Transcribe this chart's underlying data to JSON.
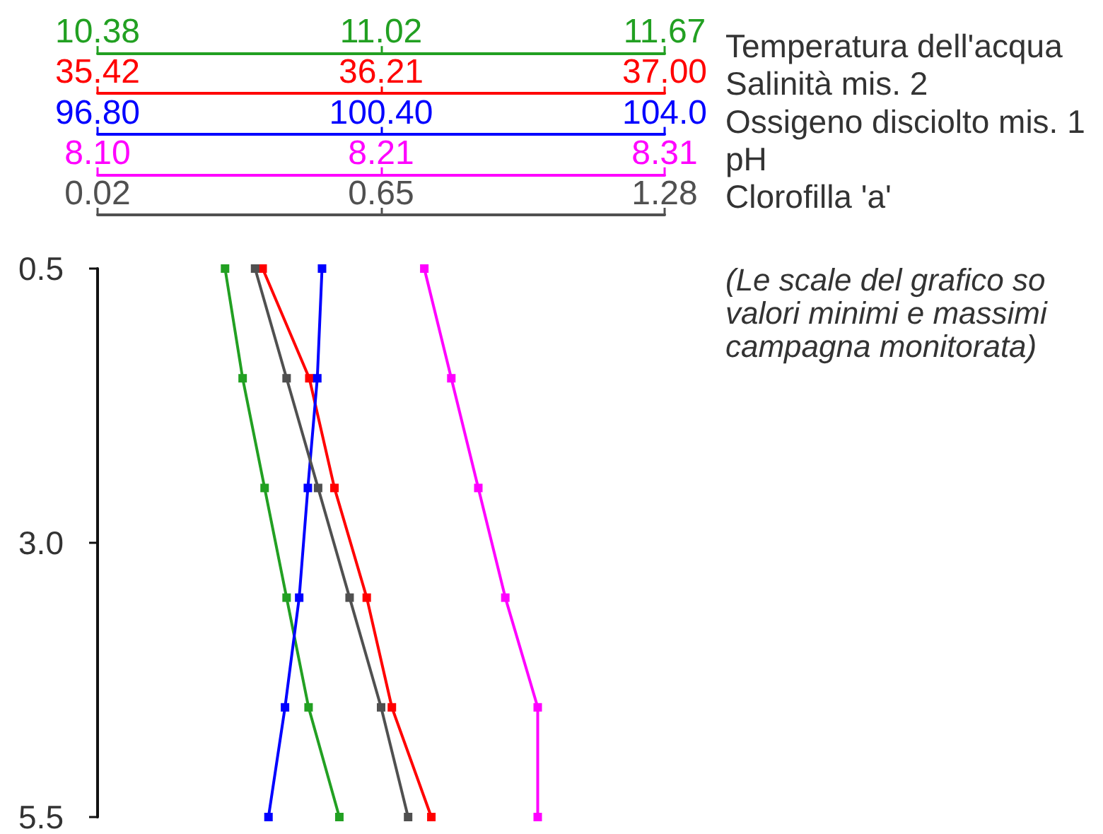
{
  "chart_data": [
    {
      "type": "line",
      "xlim": [
        10.38,
        11.67
      ],
      "xticks": [
        10.38,
        {
          "value": 11.025,
          "label": "11.02"
        },
        11.67
      ],
      "ylim": [
        5.5,
        0.5
      ],
      "tick_labels": "x",
      "series": [
        {
          "name": "Temperatura dell'acqua",
          "color": "#22a022",
          "x": [
            10.67,
            10.71,
            10.76,
            10.81,
            10.86,
            10.93
          ],
          "values": [
            0.5,
            1.5,
            2.5,
            3.5,
            4.5,
            5.5
          ]
        }
      ],
      "annotations": [
        "(Le scale del grafico so\nvalori minimi e massimi\ncampagna monitorata)"
      ],
      "legend": "top right",
      "marker": "square",
      "line_style": "solid"
    },
    {
      "type": "line",
      "xlim": [
        35.42,
        37
      ],
      "xticks": [
        35.42,
        36.21,
        {
          "value": 37,
          "label": "37.00"
        }
      ],
      "ylim": [
        5.5,
        0.5
      ],
      "tick_labels": "x",
      "series": [
        {
          "name": "Salinità mis. 2",
          "color": "#ff0000",
          "x": [
            35.88,
            36.01,
            36.08,
            36.17,
            36.24,
            36.35
          ],
          "values": [
            0.5,
            1.5,
            2.5,
            3.5,
            4.5,
            5.5
          ]
        }
      ],
      "legend": "top right",
      "marker": "square",
      "line_style": "solid"
    },
    {
      "type": "line",
      "xlim": [
        96.8,
        104
      ],
      "xticks": [
        {
          "value": 96.8,
          "label": "96.80"
        },
        {
          "value": 100.4,
          "label": "100.40"
        },
        {
          "value": 104,
          "label": "104.0"
        }
      ],
      "ylim": [
        5.5,
        0.5
      ],
      "tick_labels": "x",
      "series": [
        {
          "name": "Ossigeno disciolto mis. 1",
          "color": "#0000ff",
          "x": [
            99.65,
            99.59,
            99.47,
            99.36,
            99.18,
            98.97
          ],
          "values": [
            0.5,
            1.5,
            2.5,
            3.5,
            4.5,
            5.5
          ]
        }
      ],
      "legend": "top right",
      "marker": "square",
      "line_style": "solid"
    },
    {
      "type": "line",
      "xlim": [
        8.1,
        8.31
      ],
      "xticks": [
        {
          "value": 8.1,
          "label": "8.10"
        },
        {
          "value": 8.205,
          "label": "8.21"
        },
        8.31
      ],
      "ylim": [
        5.5,
        0.5
      ],
      "tick_labels": "x",
      "series": [
        {
          "name": "pH",
          "color": "#ff00ff",
          "x": [
            8.221,
            8.231,
            8.241,
            8.251,
            8.263,
            8.263
          ],
          "values": [
            0.5,
            1.5,
            2.5,
            3.5,
            4.5,
            5.5
          ]
        }
      ],
      "legend": "top right",
      "marker": "square",
      "line_style": "solid"
    },
    {
      "type": "line",
      "xlim": [
        0.02,
        1.28
      ],
      "xticks": [
        0.02,
        0.65,
        1.28
      ],
      "ylim": [
        5.5,
        0.5
      ],
      "yticks": [
        0.5,
        {
          "value": 3,
          "label": "3.0"
        },
        5.5
      ],
      "series": [
        {
          "name": "Clorofilla 'a'",
          "color": "#505050",
          "x": [
            0.37,
            0.44,
            0.51,
            0.58,
            0.65,
            0.71
          ],
          "values": [
            0.5,
            1.5,
            2.5,
            3.5,
            4.5,
            5.5
          ]
        }
      ],
      "legend": "top right",
      "marker": "square",
      "line_style": "solid"
    }
  ]
}
